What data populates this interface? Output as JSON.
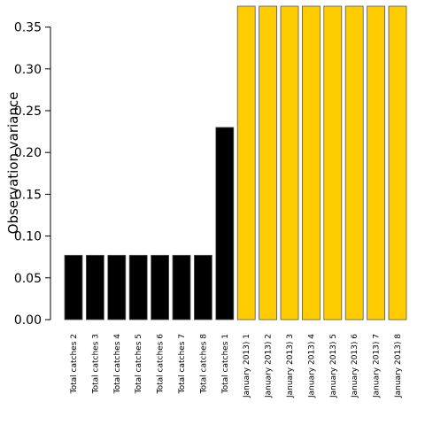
{
  "chart_data": {
    "type": "bar",
    "title": "",
    "xlabel": "",
    "ylabel": "Observation variance",
    "ylim": [
      0,
      0.375
    ],
    "yticks": [
      "0.00",
      "0.05",
      "0.10",
      "0.15",
      "0.20",
      "0.25",
      "0.30",
      "0.35"
    ],
    "ytick_values": [
      0,
      0.05,
      0.1,
      0.15,
      0.2,
      0.25,
      0.3,
      0.35
    ],
    "grid": false,
    "categories": [
      "Total catches 2",
      "Total catches 3",
      "Total catches 4",
      "Total catches 5",
      "Total catches 6",
      "Total catches 7",
      "Total catches 8",
      "Total catches 1",
      "January 2013) 1",
      "January 2013) 2",
      "January 2013) 3",
      "January 2013) 4",
      "January 2013) 5",
      "January 2013) 6",
      "January 2013) 7",
      "January 2013) 8"
    ],
    "values": [
      0.077,
      0.077,
      0.077,
      0.077,
      0.077,
      0.077,
      0.077,
      0.23,
      0.375,
      0.375,
      0.375,
      0.375,
      0.375,
      0.375,
      0.375,
      0.375
    ],
    "bar_colors": [
      "#000000",
      "#000000",
      "#000000",
      "#000000",
      "#000000",
      "#000000",
      "#000000",
      "#000000",
      "#ffcc00",
      "#ffcc00",
      "#ffcc00",
      "#ffcc00",
      "#ffcc00",
      "#ffcc00",
      "#ffcc00",
      "#ffcc00"
    ],
    "bar_stroke": "#555555"
  }
}
